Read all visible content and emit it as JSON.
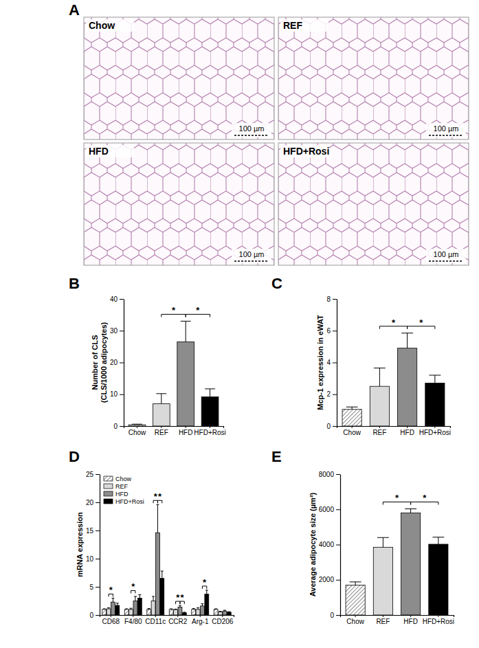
{
  "image_panel": {
    "panel_label": "A",
    "images": [
      {
        "title": "Chow",
        "scale_bar": "100 µm"
      },
      {
        "title": "REF",
        "scale_bar": "100 µm"
      },
      {
        "title": "HFD",
        "scale_bar": "100 µm"
      },
      {
        "title": "HFD+Rosi",
        "scale_bar": "100 µm"
      }
    ]
  },
  "chart_data": [
    {
      "panel_label": "B",
      "type": "bar",
      "y_label": [
        "Number of CLS",
        "(CLS/1000 adipocytes)"
      ],
      "categories": [
        "Chow",
        "REF",
        "HFD",
        "HFD+Rosi"
      ],
      "values": [
        0.4,
        7,
        26.5,
        9.2
      ],
      "errors": [
        0.2,
        3.2,
        6.5,
        2.5
      ],
      "colors": [
        "#595959",
        "#d9d9d9",
        "#8c8c8c",
        "#000000"
      ],
      "ylim": [
        0,
        40
      ],
      "yticks": [
        0,
        10,
        20,
        30,
        40
      ],
      "significance": [
        {
          "between": [
            "REF",
            "HFD"
          ],
          "label": "*"
        },
        {
          "between": [
            "HFD",
            "HFD+Rosi"
          ],
          "label": "*"
        }
      ]
    },
    {
      "panel_label": "C",
      "type": "bar",
      "y_label": [
        "Mcp-1 expression in eWAT"
      ],
      "categories": [
        "Chow",
        "REF",
        "HFD",
        "HFD+Rosi"
      ],
      "values": [
        1.05,
        2.5,
        4.9,
        2.7
      ],
      "errors": [
        0.15,
        1.15,
        0.95,
        0.5
      ],
      "colors": [
        "#595959",
        "#d9d9d9",
        "#8c8c8c",
        "#000000"
      ],
      "ylim": [
        0,
        8
      ],
      "yticks": [
        0,
        2,
        4,
        6,
        8
      ],
      "significance": [
        {
          "between": [
            "REF",
            "HFD"
          ],
          "label": "*"
        },
        {
          "between": [
            "HFD",
            "HFD+Rosi"
          ],
          "label": "*"
        }
      ]
    },
    {
      "panel_label": "D",
      "type": "bar",
      "y_label": [
        "mRNA expression"
      ],
      "categories": [
        "CD68",
        "F4/80",
        "CD11c",
        "CCR2",
        "Arg-1",
        "CD206"
      ],
      "series": [
        {
          "name": "Chow",
          "color": "#595959",
          "values": [
            1,
            1,
            1,
            1,
            1,
            1
          ],
          "errors": [
            0.1,
            0.1,
            0.15,
            0.1,
            0.15,
            0.1
          ]
        },
        {
          "name": "REF",
          "color": "#d9d9d9",
          "values": [
            1.1,
            1.0,
            2.5,
            0.95,
            1.0,
            0.55
          ],
          "errors": [
            0.2,
            0.2,
            0.8,
            0.1,
            0.3,
            0.1
          ]
        },
        {
          "name": "HFD",
          "color": "#8c8c8c",
          "values": [
            2.3,
            2.5,
            14.6,
            1.4,
            1.6,
            0.7
          ],
          "errors": [
            0.7,
            0.8,
            5,
            0.3,
            0.4,
            0.15
          ]
        },
        {
          "name": "HFD+Rosi",
          "color": "#000000",
          "values": [
            1.7,
            3.0,
            6.5,
            0.4,
            3.7,
            0.5
          ],
          "errors": [
            0.4,
            0.6,
            1.3,
            0.1,
            0.7,
            0.1
          ]
        }
      ],
      "legend": "top-left",
      "ylim": [
        0,
        25
      ],
      "yticks": [
        0,
        5,
        10,
        15,
        20,
        25
      ],
      "significance": [
        {
          "category": "CD68",
          "between": [
            "REF",
            "HFD"
          ],
          "label": "*"
        },
        {
          "category": "F4/80",
          "between": [
            "REF",
            "HFD"
          ],
          "label": "*"
        },
        {
          "category": "CD11c",
          "between": [
            "REF",
            "HFD"
          ],
          "label": "*"
        },
        {
          "category": "CD11c",
          "between": [
            "HFD",
            "HFD+Rosi"
          ],
          "label": "*"
        },
        {
          "category": "CCR2",
          "between": [
            "REF",
            "HFD"
          ],
          "label": "*"
        },
        {
          "category": "CCR2",
          "between": [
            "HFD",
            "HFD+Rosi"
          ],
          "label": "*"
        },
        {
          "category": "Arg-1",
          "between": [
            "HFD",
            "HFD+Rosi"
          ],
          "label": "*"
        }
      ]
    },
    {
      "panel_label": "E",
      "type": "bar",
      "y_label": [
        "Average adipocyte size (µm²)"
      ],
      "categories": [
        "Chow",
        "REF",
        "HFD",
        "HFD+Rosi"
      ],
      "values": [
        1700,
        3850,
        5800,
        4020
      ],
      "errors": [
        180,
        550,
        230,
        400
      ],
      "colors": [
        "#595959",
        "#d9d9d9",
        "#8c8c8c",
        "#000000"
      ],
      "ylim": [
        0,
        8000
      ],
      "yticks": [
        0,
        2000,
        4000,
        6000,
        8000
      ],
      "significance": [
        {
          "between": [
            "REF",
            "HFD"
          ],
          "label": "*"
        },
        {
          "between": [
            "HFD",
            "HFD+Rosi"
          ],
          "label": "*"
        }
      ]
    }
  ]
}
